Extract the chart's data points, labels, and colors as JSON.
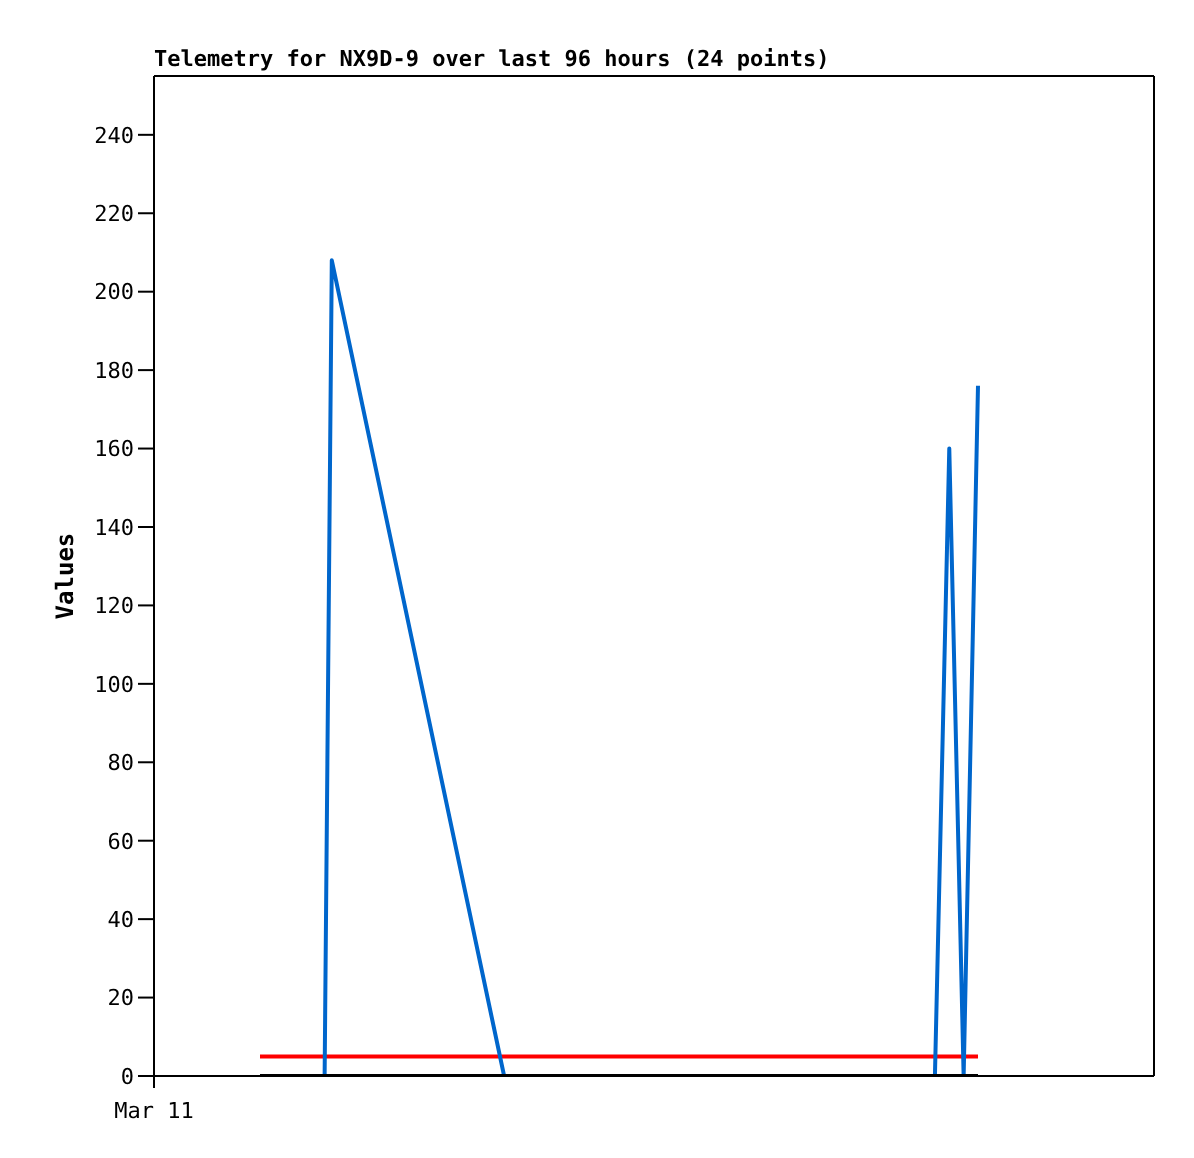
{
  "chart_data": {
    "type": "line",
    "title": "Telemetry for NX9D-9 over last 96 hours (24 points)",
    "ylabel": "Values",
    "annotations": [
      "Mar 11"
    ],
    "categories": [
      null,
      null,
      null,
      null,
      null,
      null,
      null,
      null,
      null,
      null,
      null,
      null,
      null,
      null,
      null,
      null,
      null,
      null,
      null,
      null,
      null,
      null,
      null,
      null,
      null,
      null,
      null,
      null,
      null,
      null,
      null,
      null,
      null,
      null,
      null,
      null,
      null,
      null,
      null,
      null,
      null,
      null,
      null,
      null,
      null,
      null,
      null,
      null,
      null,
      null,
      null,
      null,
      null,
      null,
      null,
      null,
      null,
      null,
      null,
      null,
      null,
      null,
      null,
      null,
      null,
      null,
      null,
      null,
      null,
      null,
      null,
      null,
      null,
      null,
      null,
      null,
      null,
      null,
      null,
      null,
      null,
      null,
      null,
      null,
      null,
      null,
      null,
      null,
      null,
      null,
      null,
      null,
      null,
      null,
      null,
      null,
      null,
      null,
      null,
      null,
      null
    ],
    "ylim": [
      0,
      255
    ],
    "yticks": [
      0,
      20,
      40,
      60,
      80,
      100,
      120,
      140,
      160,
      180,
      200,
      220,
      240
    ],
    "marker": "none",
    "series": [
      {
        "color": "#ff0000",
        "values": [
          5,
          5,
          5,
          5,
          5,
          5,
          5,
          5,
          5,
          5,
          5,
          5,
          5,
          5,
          5,
          5,
          5,
          5,
          5,
          5,
          5,
          5,
          5,
          5,
          5,
          5,
          5,
          5,
          5,
          5,
          5,
          5,
          5,
          5,
          5,
          5,
          5,
          5,
          5,
          5,
          5,
          5,
          5,
          5,
          5,
          5,
          5,
          5,
          5,
          5,
          5,
          5,
          5,
          5,
          5,
          5,
          5,
          5,
          5,
          5,
          5,
          5,
          5,
          5,
          5,
          5,
          5,
          5,
          5,
          5,
          5,
          5,
          5,
          5,
          5,
          5,
          5,
          5,
          5,
          5,
          5,
          5,
          5,
          5,
          5,
          5,
          5,
          5,
          5,
          5,
          5,
          5,
          5,
          5,
          5,
          5,
          5,
          5,
          5,
          5,
          5
        ]
      },
      {
        "color": "#0066cc",
        "values": [
          0,
          null,
          null,
          null,
          null,
          null,
          null,
          null,
          null,
          0,
          208,
          null,
          null,
          null,
          null,
          null,
          null,
          null,
          null,
          null,
          null,
          null,
          null,
          null,
          null,
          null,
          null,
          null,
          null,
          null,
          null,
          null,
          null,
          null,
          0,
          null,
          null,
          null,
          null,
          null,
          null,
          null,
          null,
          null,
          null,
          null,
          null,
          null,
          null,
          null,
          null,
          null,
          null,
          null,
          null,
          null,
          null,
          null,
          null,
          null,
          null,
          null,
          null,
          null,
          null,
          null,
          null,
          null,
          null,
          null,
          null,
          null,
          null,
          null,
          null,
          null,
          null,
          null,
          null,
          null,
          null,
          null,
          null,
          null,
          null,
          null,
          null,
          null,
          null,
          null,
          null,
          null,
          null,
          null,
          0,
          null,
          160,
          null,
          0,
          null,
          176
        ]
      },
      {
        "color": "#000000",
        "values": [
          0,
          0,
          0,
          0,
          0,
          0,
          0,
          0,
          0,
          0,
          0,
          0,
          0,
          0,
          0,
          0,
          0,
          0,
          0,
          0,
          0,
          0,
          0,
          0,
          0,
          0,
          0,
          0,
          0,
          0,
          0,
          0,
          0,
          0,
          0,
          0,
          0,
          0,
          0,
          0,
          0,
          0,
          0,
          0,
          0,
          0,
          0,
          0,
          0,
          0,
          0,
          0,
          0,
          0,
          0,
          0,
          0,
          0,
          0,
          0,
          0,
          0,
          0,
          0,
          0,
          0,
          0,
          0,
          0,
          0,
          0,
          0,
          0,
          0,
          0,
          0,
          0,
          0,
          0,
          0,
          0,
          0,
          0,
          0,
          0,
          0,
          0,
          0,
          0,
          0,
          0,
          0,
          0,
          0,
          0,
          0,
          0,
          0,
          0,
          0,
          0
        ]
      }
    ]
  }
}
